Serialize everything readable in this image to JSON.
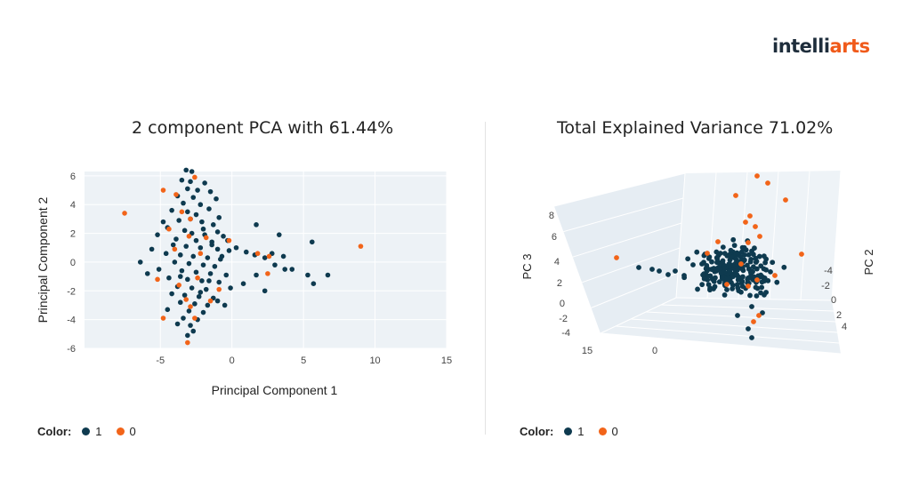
{
  "logo": {
    "part1": "intelli",
    "part2": "arts"
  },
  "colors": {
    "class1": "#0e3a4f",
    "class0": "#f26419",
    "bg": "#edf2f6",
    "grid": "#ffffff"
  },
  "chart_data": [
    {
      "type": "scatter",
      "title": "2 component PCA with 61.44%",
      "xlabel": "Principal Component 1",
      "ylabel": "Principal Component 2",
      "xlim": [
        -10.3,
        15
      ],
      "ylim": [
        -6,
        6.3
      ],
      "xticks": [
        -5,
        0,
        5,
        10,
        15
      ],
      "yticks": [
        -6,
        -4,
        -2,
        0,
        2,
        4,
        6
      ],
      "legend_title": "Color:",
      "legend": [
        "1",
        "0"
      ],
      "series": [
        {
          "name": "1",
          "points": [
            [
              -3.2,
              6.4
            ],
            [
              -2.8,
              6.3
            ],
            [
              -3.5,
              5.7
            ],
            [
              -2.9,
              5.6
            ],
            [
              -1.9,
              5.5
            ],
            [
              -3.1,
              5.1
            ],
            [
              -2.4,
              5
            ],
            [
              -1.5,
              4.9
            ],
            [
              -3.8,
              4.6
            ],
            [
              -2.7,
              4.5
            ],
            [
              -1.1,
              4.4
            ],
            [
              -3.4,
              4.1
            ],
            [
              -2.2,
              4
            ],
            [
              -1.6,
              3.7
            ],
            [
              -4.2,
              3.6
            ],
            [
              -3.1,
              3.5
            ],
            [
              -2.5,
              3.3
            ],
            [
              -0.9,
              3.1
            ],
            [
              -3.7,
              2.9
            ],
            [
              -2.1,
              2.8
            ],
            [
              -1.3,
              2.6
            ],
            [
              -4.5,
              2.4
            ],
            [
              -3.3,
              2.2
            ],
            [
              -2.8,
              2
            ],
            [
              -1.9,
              1.9
            ],
            [
              -0.6,
              1.8
            ],
            [
              -3.9,
              1.6
            ],
            [
              -2.5,
              1.5
            ],
            [
              -1.4,
              1.4
            ],
            [
              -4.1,
              1.2
            ],
            [
              -3.2,
              1.1
            ],
            [
              -2.2,
              1
            ],
            [
              -1,
              0.9
            ],
            [
              -0.2,
              0.8
            ],
            [
              -4.6,
              0.6
            ],
            [
              -3.6,
              0.5
            ],
            [
              -2.7,
              0.4
            ],
            [
              -1.7,
              0.3
            ],
            [
              -0.8,
              0.2
            ],
            [
              -4,
              0
            ],
            [
              -3,
              -0.1
            ],
            [
              -2,
              -0.2
            ],
            [
              -1.2,
              -0.3
            ],
            [
              -5.1,
              -0.5
            ],
            [
              -3.5,
              -0.6
            ],
            [
              -2.5,
              -0.7
            ],
            [
              -1.5,
              -0.8
            ],
            [
              -0.4,
              -0.9
            ],
            [
              -4.4,
              -1.1
            ],
            [
              -3.1,
              -1.2
            ],
            [
              -2.1,
              -1.3
            ],
            [
              -0.9,
              -1.4
            ],
            [
              -3.8,
              -1.7
            ],
            [
              -2.8,
              -1.8
            ],
            [
              -1.8,
              -1.9
            ],
            [
              -4.2,
              -2.2
            ],
            [
              -3.3,
              -2.3
            ],
            [
              -2.3,
              -2.4
            ],
            [
              -1.3,
              -2.5
            ],
            [
              -3.6,
              -2.8
            ],
            [
              -2.6,
              -2.9
            ],
            [
              -1.7,
              -3
            ],
            [
              -4.5,
              -3.3
            ],
            [
              -3,
              -3.4
            ],
            [
              -2,
              -3.5
            ],
            [
              -3.4,
              -3.9
            ],
            [
              -2.4,
              -4
            ],
            [
              -3.8,
              -4.3
            ],
            [
              -2.9,
              -4.4
            ],
            [
              -2.7,
              -4.8
            ],
            [
              -3.1,
              -5.1
            ],
            [
              -6.4,
              0
            ],
            [
              -5.9,
              -0.8
            ],
            [
              -5.6,
              0.9
            ],
            [
              -5.2,
              1.9
            ],
            [
              -2,
              2.3
            ],
            [
              -1,
              2.1
            ],
            [
              -0.3,
              1.5
            ],
            [
              0.3,
              1
            ],
            [
              1,
              0.7
            ],
            [
              1.6,
              0.5
            ],
            [
              2.3,
              0.3
            ],
            [
              3,
              -0.2
            ],
            [
              -0.1,
              -1.8
            ],
            [
              0.8,
              -1.5
            ],
            [
              -1,
              -2.7
            ],
            [
              -0.5,
              -3
            ],
            [
              1.7,
              -0.9
            ],
            [
              2.8,
              0.6
            ],
            [
              1.7,
              2.6
            ],
            [
              3.3,
              1.9
            ],
            [
              3.6,
              0.4
            ],
            [
              3.7,
              -0.5
            ],
            [
              2.3,
              -2
            ],
            [
              4.2,
              -0.5
            ],
            [
              5.3,
              -0.9
            ],
            [
              5.6,
              1.4
            ],
            [
              5.7,
              -1.5
            ],
            [
              6.7,
              -0.9
            ],
            [
              -4.8,
              2.8
            ],
            [
              -1.4,
              1.2
            ],
            [
              -2.9,
              3
            ],
            [
              -3.6,
              -1
            ],
            [
              -2.2,
              -2.1
            ],
            [
              -1.6,
              -1.3
            ],
            [
              -0.7,
              0.4
            ]
          ]
        },
        {
          "name": "0",
          "points": [
            [
              -7.5,
              3.4
            ],
            [
              -4.8,
              5
            ],
            [
              -3.9,
              4.7
            ],
            [
              -2.6,
              5.9
            ],
            [
              -3.5,
              3.5
            ],
            [
              -2.9,
              3
            ],
            [
              -4.4,
              2.3
            ],
            [
              -3,
              1.8
            ],
            [
              -1.8,
              1.7
            ],
            [
              -0.2,
              1.5
            ],
            [
              -4,
              0.9
            ],
            [
              -2.2,
              0.6
            ],
            [
              1.8,
              0.6
            ],
            [
              2.6,
              0.4
            ],
            [
              -5.2,
              -1.2
            ],
            [
              -3.7,
              -1.6
            ],
            [
              -2.4,
              -1.1
            ],
            [
              -3.2,
              -2.6
            ],
            [
              -2.9,
              -3.1
            ],
            [
              -1.5,
              -2.7
            ],
            [
              -4.8,
              -3.9
            ],
            [
              -2.6,
              -3.9
            ],
            [
              -3.1,
              -5.6
            ],
            [
              2.5,
              -0.8
            ],
            [
              9,
              1.1
            ],
            [
              -0.9,
              -1.9
            ]
          ]
        }
      ]
    },
    {
      "type": "scatter3d",
      "title": "Total Explained Variance 71.02%",
      "axis_labels": {
        "z": "PC 3",
        "y": "PC 2"
      },
      "z_ticks": [
        "8",
        "6",
        "4",
        "2",
        "0",
        "-2",
        "-4"
      ],
      "x_ticks": [
        "15",
        "0"
      ],
      "y_ticks": [
        "-4",
        "-2",
        "0",
        "2",
        "4"
      ],
      "legend_title": "Color:",
      "legend": [
        "1",
        "0"
      ]
    }
  ]
}
